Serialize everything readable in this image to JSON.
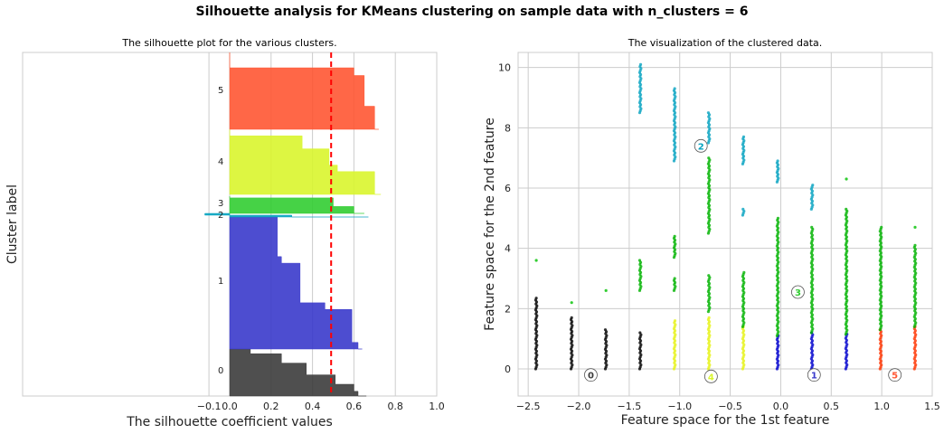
{
  "suptitle": "Silhouette analysis for KMeans clustering on sample data with n_clusters = 6",
  "chart_data": [
    {
      "type": "bar",
      "title": "The silhouette plot for the various clusters.",
      "xlabel": "The silhouette coefficient values",
      "ylabel": "Cluster label",
      "xticks": [
        -0.1,
        0.0,
        0.2,
        0.4,
        0.6,
        0.8,
        1.0
      ],
      "xtick_labels": [
        "−0.1",
        "0.0",
        "0.2",
        "0.4",
        "0.6",
        "0.8",
        "1.0"
      ],
      "xlim": [
        -1.0,
        1.0
      ],
      "average_silhouette_score": 0.49,
      "average_line_color": "#ff0000",
      "grid": true,
      "clusters": [
        {
          "label": "0",
          "color": "#3c3c3c",
          "profile": [
            [
              0.0,
              0.66
            ],
            [
              0.1,
              0.62
            ],
            [
              0.25,
              0.6
            ],
            [
              0.45,
              0.51
            ],
            [
              0.7,
              0.37
            ],
            [
              0.9,
              0.25
            ],
            [
              1.0,
              0.1
            ]
          ]
        },
        {
          "label": "1",
          "color": "#3a3acb",
          "profile": [
            [
              0.0,
              0.64
            ],
            [
              0.05,
              0.62
            ],
            [
              0.3,
              0.59
            ],
            [
              0.35,
              0.46
            ],
            [
              0.65,
              0.34
            ],
            [
              0.7,
              0.25
            ],
            [
              1.0,
              0.23
            ]
          ]
        },
        {
          "label": "2",
          "color": "#06a3c0",
          "profile": [
            [
              0.0,
              0.67
            ],
            [
              0.5,
              0.3
            ],
            [
              1.0,
              -0.12
            ]
          ]
        },
        {
          "label": "3",
          "color": "#32cd32",
          "profile": [
            [
              0.0,
              0.65
            ],
            [
              0.4,
              0.6
            ],
            [
              0.9,
              0.5
            ],
            [
              1.0,
              0.0
            ]
          ]
        },
        {
          "label": "4",
          "color": "#d9f52d",
          "profile": [
            [
              0.0,
              0.73
            ],
            [
              0.35,
              0.7
            ],
            [
              0.45,
              0.52
            ],
            [
              0.7,
              0.48
            ],
            [
              0.9,
              0.35
            ],
            [
              1.0,
              0.0
            ]
          ]
        },
        {
          "label": "5",
          "color": "#ff5733",
          "profile": [
            [
              0.0,
              0.72
            ],
            [
              0.3,
              0.7
            ],
            [
              0.7,
              0.65
            ],
            [
              0.8,
              0.6
            ],
            [
              1.0,
              0.0
            ]
          ]
        }
      ]
    },
    {
      "type": "scatter",
      "title": "The visualization of the clustered data.",
      "xlabel": "Feature space for the 1st feature",
      "ylabel": "Feature space for the 2nd feature",
      "xlim": [
        -2.6,
        1.5
      ],
      "ylim": [
        -0.9,
        10.5
      ],
      "xticks": [
        -2.5,
        -2.0,
        -1.5,
        -1.0,
        -0.5,
        0.0,
        0.5,
        1.0,
        1.5
      ],
      "xtick_labels": [
        "−2.5",
        "−2.0",
        "−1.5",
        "−1.0",
        "−0.5",
        "0.0",
        "0.5",
        "1.0",
        "1.5"
      ],
      "yticks": [
        0,
        2,
        4,
        6,
        8,
        10
      ],
      "ytick_labels": [
        "0",
        "2",
        "4",
        "6",
        "8",
        "10"
      ],
      "grid": true,
      "columns": [
        {
          "x": -2.42,
          "segments": [
            [
              0.0,
              2.35,
              "#000000"
            ]
          ],
          "outliers": [
            [
              3.6,
              "#32cd32"
            ]
          ]
        },
        {
          "x": -2.07,
          "segments": [
            [
              0.0,
              1.7,
              "#000000"
            ]
          ],
          "outliers": [
            [
              2.2,
              "#32cd32"
            ]
          ]
        },
        {
          "x": -1.73,
          "segments": [
            [
              0.0,
              1.3,
              "#000000"
            ]
          ],
          "outliers": [
            [
              2.6,
              "#32cd32"
            ]
          ]
        },
        {
          "x": -1.39,
          "segments": [
            [
              0.0,
              1.2,
              "#000000"
            ],
            [
              2.6,
              3.6,
              "#00b300"
            ],
            [
              8.5,
              10.1,
              "#06a3c0"
            ]
          ],
          "outliers": []
        },
        {
          "x": -1.05,
          "segments": [
            [
              0.0,
              1.6,
              "#e6f215"
            ],
            [
              2.6,
              3.0,
              "#00b300"
            ],
            [
              3.7,
              4.4,
              "#00b300"
            ],
            [
              6.9,
              9.3,
              "#06a3c0"
            ]
          ],
          "outliers": []
        },
        {
          "x": -0.71,
          "segments": [
            [
              0.0,
              1.7,
              "#e6f215"
            ],
            [
              1.9,
              3.1,
              "#00b300"
            ],
            [
              4.5,
              7.0,
              "#00b300"
            ],
            [
              7.5,
              8.5,
              "#06a3c0"
            ]
          ],
          "outliers": []
        },
        {
          "x": -0.37,
          "segments": [
            [
              0.0,
              1.4,
              "#e6f215"
            ],
            [
              1.4,
              3.2,
              "#00b300"
            ],
            [
              5.1,
              5.3,
              "#06a3c0"
            ],
            [
              6.8,
              7.7,
              "#06a3c0"
            ]
          ],
          "outliers": []
        },
        {
          "x": -0.03,
          "segments": [
            [
              0.0,
              1.1,
              "#0000cd"
            ],
            [
              1.1,
              5.0,
              "#00b300"
            ],
            [
              6.2,
              6.9,
              "#06a3c0"
            ]
          ],
          "outliers": []
        },
        {
          "x": 0.31,
          "segments": [
            [
              0.0,
              1.2,
              "#0000cd"
            ],
            [
              1.2,
              4.7,
              "#00b300"
            ],
            [
              5.3,
              6.1,
              "#06a3c0"
            ]
          ],
          "outliers": []
        },
        {
          "x": 0.65,
          "segments": [
            [
              0.0,
              1.15,
              "#0000cd"
            ],
            [
              1.15,
              5.3,
              "#00b300"
            ]
          ],
          "outliers": [
            [
              6.3,
              "#32cd32"
            ]
          ]
        },
        {
          "x": 0.99,
          "segments": [
            [
              0.0,
              1.3,
              "#ff3300"
            ],
            [
              1.3,
              4.7,
              "#00b300"
            ]
          ],
          "outliers": []
        },
        {
          "x": 1.33,
          "segments": [
            [
              0.0,
              1.4,
              "#ff3300"
            ],
            [
              1.4,
              4.1,
              "#00b300"
            ]
          ],
          "outliers": [
            [
              4.7,
              "#32cd32"
            ]
          ]
        }
      ],
      "centers": [
        {
          "label": "0",
          "x": -1.88,
          "y": -0.2,
          "color": "#3c3c3c"
        },
        {
          "label": "1",
          "x": 0.33,
          "y": -0.2,
          "color": "#3a3acb"
        },
        {
          "label": "2",
          "x": -0.79,
          "y": 7.4,
          "color": "#06a3c0"
        },
        {
          "label": "3",
          "x": 0.17,
          "y": 2.55,
          "color": "#32cd32"
        },
        {
          "label": "4",
          "x": -0.69,
          "y": -0.25,
          "color": "#d9f52d"
        },
        {
          "label": "5",
          "x": 1.13,
          "y": -0.2,
          "color": "#ff5733"
        }
      ]
    }
  ]
}
